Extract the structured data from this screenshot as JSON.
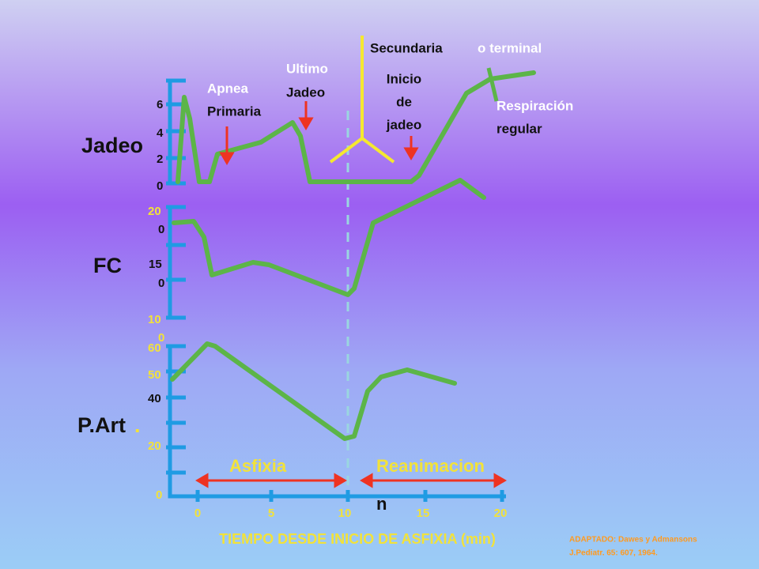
{
  "annotations": {
    "secundaria": "Secundaria",
    "o_terminal": "o terminal",
    "ultimo": "Ultimo",
    "ultimo_jadeo": "Jadeo",
    "inicio": "Inicio",
    "de": "de",
    "jadeo": "jadeo",
    "apnea": "Apnea",
    "primaria": "Primaria",
    "respiracion": "Respiración",
    "regular": "regular",
    "asfixia": "Asfixia",
    "reanimacion": "Reanimacion",
    "reanimacion_n": "n"
  },
  "panels": {
    "jadeo": {
      "label": "Jadeo",
      "ticks": [
        "6",
        "4",
        "2",
        "0"
      ]
    },
    "fc": {
      "label": "FC",
      "ticks": [
        "20",
        "0",
        "15",
        "0",
        "10",
        "0"
      ]
    },
    "part": {
      "label": "P.Art",
      "dot": ".",
      "ticks": [
        "60",
        "50",
        "40",
        "20",
        "0"
      ]
    }
  },
  "x_axis": {
    "ticks": [
      "0",
      "5",
      "10",
      "15",
      "20"
    ],
    "label": "TIEMPO DESDE INICIO DE ASFIXIA (min)"
  },
  "source": [
    "ADAPTADO: Dawes y Admansons",
    "J.Pediatr. 65: 607, 1964."
  ]
}
